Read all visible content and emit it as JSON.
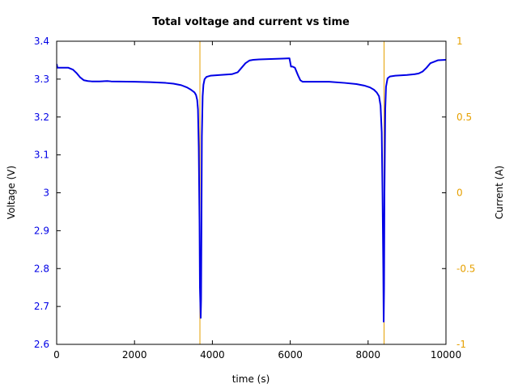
{
  "chart_data": {
    "type": "line",
    "title": "Total voltage and current vs time",
    "xlabel": "time (s)",
    "ylabel_left": "Voltage (V)",
    "ylabel_right": "Current (A)",
    "xlim": [
      0,
      10000
    ],
    "ylim_left": [
      2.6,
      3.4
    ],
    "ylim_right": [
      -1,
      1
    ],
    "x_ticks": [
      0,
      2000,
      4000,
      6000,
      8000,
      10000
    ],
    "x_tick_labels": [
      "0",
      "2000",
      "4000",
      "6000",
      "8000",
      "10000"
    ],
    "y_left_ticks": [
      2.6,
      2.7,
      2.8,
      2.9,
      3.0,
      3.1,
      3.2,
      3.3,
      3.4
    ],
    "y_left_tick_labels": [
      "2.6",
      "2.7",
      "2.8",
      "2.9",
      "3",
      "3.1",
      "3.2",
      "3.3",
      "3.4"
    ],
    "y_right_ticks": [
      -1,
      -0.5,
      0,
      0.5,
      1
    ],
    "y_right_tick_labels": [
      "-1",
      "-0.5",
      "0",
      "0.5",
      "1"
    ],
    "grid": false,
    "colors": {
      "voltage": "#0000e6",
      "current": "#e6a000",
      "left_axis": "#0000e6",
      "right_axis": "#e6a000"
    },
    "series": [
      {
        "axis": "left",
        "color": "#0000e6",
        "x": [
          0,
          20,
          40,
          300,
          420,
          520,
          600,
          700,
          800,
          900,
          1100,
          1300,
          1400,
          2000,
          2400,
          2800,
          3000,
          3200,
          3350,
          3450,
          3540,
          3580,
          3610,
          3630,
          3650,
          3670,
          3680,
          3700,
          3710,
          3720,
          3730,
          3750,
          3770,
          3800,
          3850,
          3950,
          4200,
          4500,
          4650,
          4750,
          4850,
          4950,
          5050,
          5200,
          5500,
          5800,
          5980,
          6020,
          6060,
          6120,
          6200,
          6260,
          6320,
          6400,
          6600,
          7000,
          7400,
          7700,
          7900,
          8050,
          8150,
          8220,
          8280,
          8320,
          8350,
          8370,
          8390,
          8400,
          8410,
          8420,
          8440,
          8460,
          8500,
          8560,
          8700,
          9000,
          9200,
          9300,
          9400,
          9500,
          9600,
          9800,
          10000
        ],
        "y": [
          3.34,
          3.33,
          3.33,
          3.33,
          3.325,
          3.315,
          3.305,
          3.297,
          3.295,
          3.294,
          3.294,
          3.295,
          3.294,
          3.293,
          3.292,
          3.29,
          3.288,
          3.284,
          3.278,
          3.272,
          3.265,
          3.258,
          3.245,
          3.22,
          3.12,
          2.92,
          2.75,
          2.67,
          2.72,
          2.92,
          3.15,
          3.255,
          3.285,
          3.3,
          3.306,
          3.309,
          3.311,
          3.313,
          3.318,
          3.33,
          3.342,
          3.349,
          3.351,
          3.352,
          3.353,
          3.354,
          3.355,
          3.333,
          3.333,
          3.33,
          3.31,
          3.297,
          3.293,
          3.293,
          3.293,
          3.293,
          3.29,
          3.287,
          3.283,
          3.278,
          3.272,
          3.265,
          3.255,
          3.23,
          3.16,
          3.0,
          2.8,
          2.66,
          2.75,
          3.0,
          3.22,
          3.28,
          3.302,
          3.307,
          3.309,
          3.311,
          3.313,
          3.315,
          3.32,
          3.33,
          3.342,
          3.35,
          3.351
        ]
      },
      {
        "axis": "right",
        "color": "#e6a000",
        "x": [
          3680,
          3680,
          3680,
          6000,
          6000,
          6030,
          8410,
          8410,
          8410
        ],
        "y": [
          -1.1,
          1.1,
          null,
          1.1,
          null,
          -1.1,
          -1.1,
          1.1,
          null
        ]
      }
    ]
  }
}
